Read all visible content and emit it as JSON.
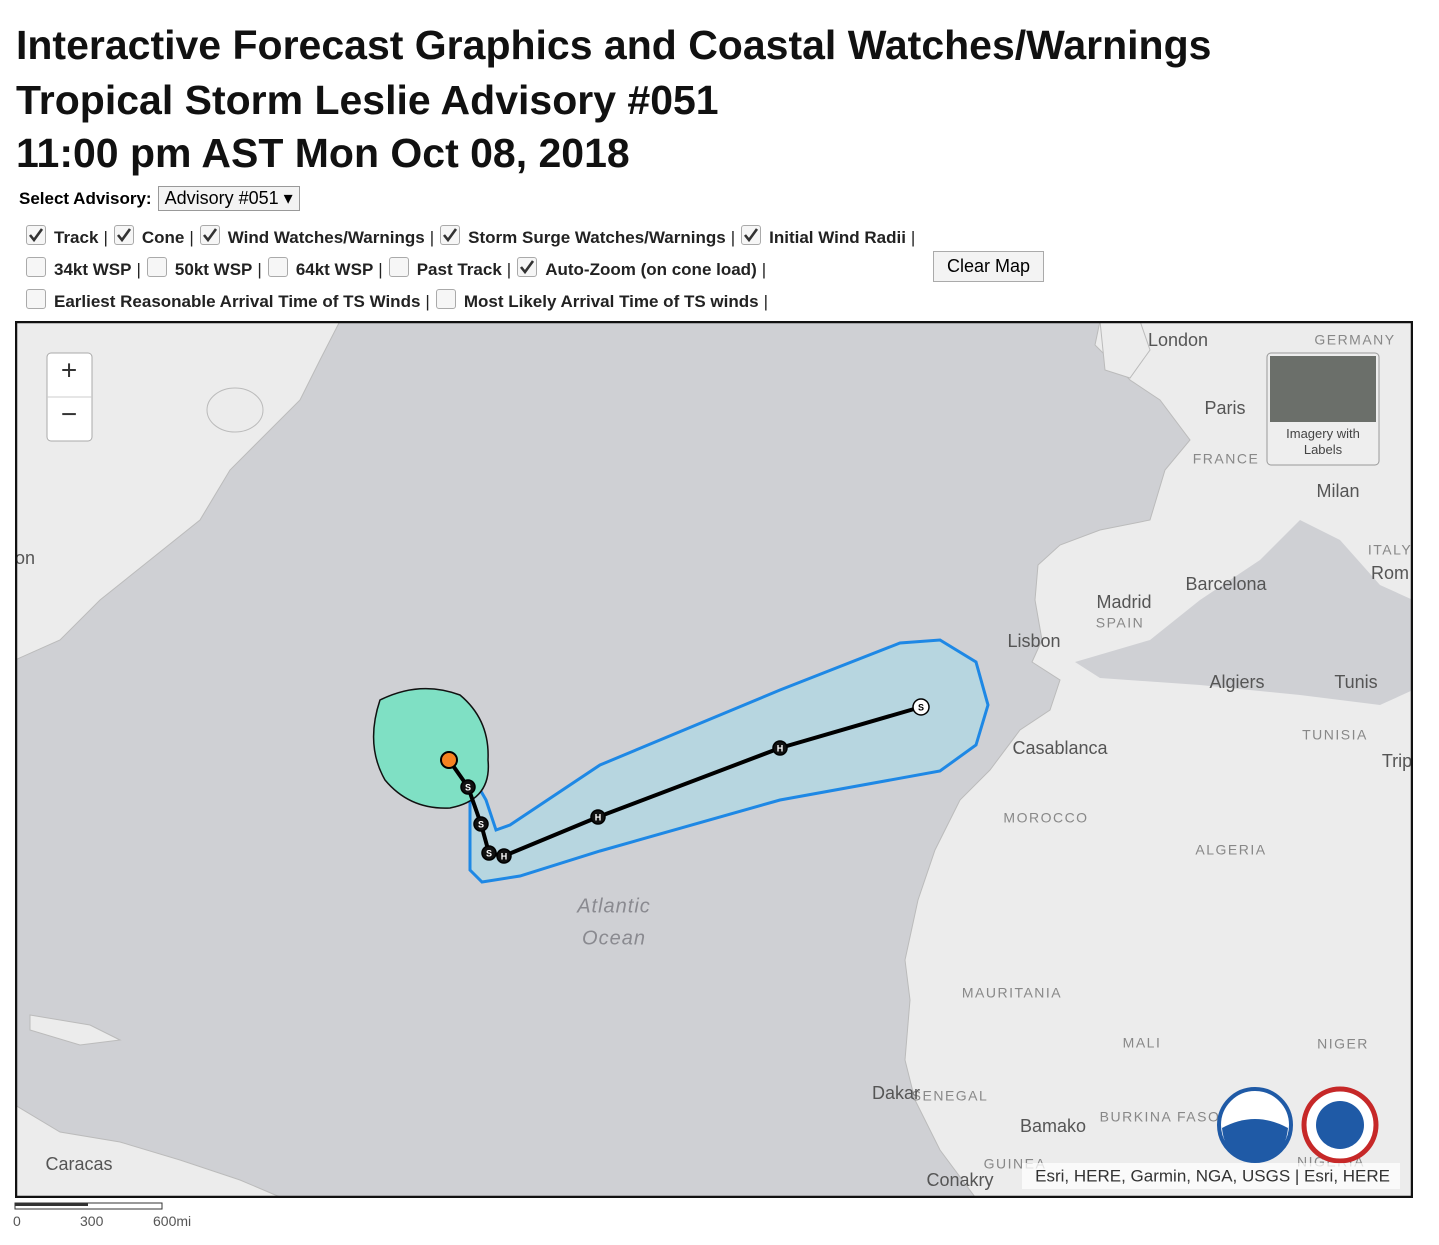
{
  "header": {
    "title_lines": [
      "Interactive Forecast Graphics and Coastal Watches/Warnings",
      "Tropical Storm Leslie Advisory #051",
      "11:00 pm AST Mon Oct 08, 2018"
    ]
  },
  "advisory": {
    "label": "Select Advisory:",
    "selected": "Advisory #051"
  },
  "layers": {
    "separator": "|",
    "rows": [
      [
        {
          "label": "Track",
          "checked": true
        },
        {
          "label": "Cone",
          "checked": true
        },
        {
          "label": "Wind Watches/Warnings",
          "checked": true
        },
        {
          "label": "Storm Surge Watches/Warnings",
          "checked": true
        },
        {
          "label": "Initial Wind Radii",
          "checked": true
        }
      ],
      [
        {
          "label": "34kt WSP",
          "checked": false
        },
        {
          "label": "50kt WSP",
          "checked": false
        },
        {
          "label": "64kt WSP",
          "checked": false
        },
        {
          "label": "Past Track",
          "checked": false
        },
        {
          "label": "Auto-Zoom (on cone load)",
          "checked": true
        }
      ],
      [
        {
          "label": "Earliest Reasonable Arrival Time of TS Winds",
          "checked": false
        },
        {
          "label": "Most Likely Arrival Time of TS winds",
          "checked": false
        }
      ]
    ]
  },
  "clear_button": "Clear Map",
  "map": {
    "zoom_in": "+",
    "zoom_out": "−",
    "basemap_toggle": "Imagery with Labels",
    "attribution": "Esri, HERE, Garmin, NGA, USGS | Esri, HERE",
    "labels": [
      "London",
      "GERMANY",
      "Paris",
      "FRANCE",
      "Milan",
      "ITALY",
      "Rom",
      "Barcelona",
      "Madrid",
      "SPAIN",
      "Lisbon",
      "Algiers",
      "Tunis",
      "TUNISIA",
      "Trip",
      "Casablanca",
      "MOROCCO",
      "ALGERIA",
      "Atlantic",
      "Ocean",
      "MAURITANIA",
      "MALI",
      "NIGER",
      "SENEGAL",
      "Dakar",
      "Bamako",
      "BURKINA FASO",
      "Caracas",
      "GUINEA",
      "Conakry",
      "NIGERIA",
      "on"
    ],
    "track_points": [
      "S",
      "S",
      "S",
      "H",
      "H",
      "H",
      "S"
    ]
  },
  "scale_bar": {
    "ticks": [
      "0",
      "300",
      "600mi"
    ]
  }
}
